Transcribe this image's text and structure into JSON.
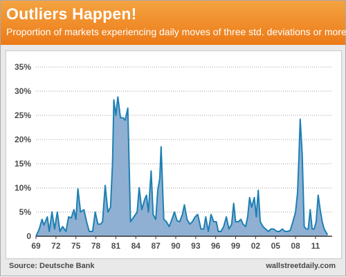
{
  "header": {
    "title": "Outliers Happen!",
    "subtitle": "Proportion of markets experiencing daily moves of three std. deviations or more"
  },
  "footer": {
    "source": "Source: Deutsche Bank",
    "site": "wallstreetdaily.com"
  },
  "colors": {
    "header_top": "#f4a341",
    "header_bottom": "#ec7a17",
    "area_fill": "#8fb0d2",
    "line": "#1d7fb3",
    "panel_background": "#e9e9e9"
  },
  "chart_data": {
    "type": "area",
    "title": "Outliers Happen!",
    "subtitle": "Proportion of markets experiencing daily moves of three std. deviations or more",
    "xlabel": "",
    "ylabel": "",
    "ylim": [
      0,
      35
    ],
    "xlim": [
      1969,
      2013.5
    ],
    "grid": "horizontal dotted",
    "legend": "none",
    "y_tick_labels": [
      "0",
      "5%",
      "10%",
      "15%",
      "20%",
      "25%",
      "30%",
      "35%"
    ],
    "x_tick_labels": [
      "69",
      "72",
      "75",
      "78",
      "81",
      "84",
      "87",
      "90",
      "93",
      "96",
      "99",
      "02",
      "05",
      "08",
      "11"
    ],
    "series": [
      {
        "values": [
          [
            1969.0,
            0.0
          ],
          [
            1969.5,
            1.5
          ],
          [
            1969.9,
            3.5
          ],
          [
            1970.2,
            2.3
          ],
          [
            1970.7,
            4.0
          ],
          [
            1971.0,
            1.0
          ],
          [
            1971.4,
            5.0
          ],
          [
            1971.8,
            1.5
          ],
          [
            1972.2,
            5.0
          ],
          [
            1972.6,
            1.0
          ],
          [
            1973.0,
            2.0
          ],
          [
            1973.5,
            1.0
          ],
          [
            1973.9,
            4.0
          ],
          [
            1974.3,
            3.8
          ],
          [
            1974.7,
            5.5
          ],
          [
            1975.0,
            3.5
          ],
          [
            1975.3,
            9.8
          ],
          [
            1975.7,
            5.0
          ],
          [
            1976.2,
            5.5
          ],
          [
            1976.6,
            3.0
          ],
          [
            1977.0,
            1.0
          ],
          [
            1977.5,
            1.0
          ],
          [
            1977.9,
            5.0
          ],
          [
            1978.3,
            2.5
          ],
          [
            1978.7,
            2.5
          ],
          [
            1979.0,
            3.0
          ],
          [
            1979.4,
            10.5
          ],
          [
            1979.8,
            5.0
          ],
          [
            1980.2,
            6.0
          ],
          [
            1980.5,
            15.0
          ],
          [
            1980.7,
            28.2
          ],
          [
            1981.0,
            25.0
          ],
          [
            1981.3,
            28.8
          ],
          [
            1981.7,
            24.5
          ],
          [
            1982.1,
            24.5
          ],
          [
            1982.4,
            24.0
          ],
          [
            1982.8,
            26.5
          ],
          [
            1983.2,
            3.0
          ],
          [
            1983.7,
            4.0
          ],
          [
            1984.2,
            5.0
          ],
          [
            1984.5,
            10.0
          ],
          [
            1984.9,
            5.5
          ],
          [
            1985.3,
            7.5
          ],
          [
            1985.6,
            8.5
          ],
          [
            1985.9,
            5.0
          ],
          [
            1986.3,
            13.5
          ],
          [
            1986.6,
            4.5
          ],
          [
            1987.0,
            3.5
          ],
          [
            1987.3,
            9.5
          ],
          [
            1987.6,
            12.0
          ],
          [
            1987.8,
            18.5
          ],
          [
            1988.2,
            3.5
          ],
          [
            1988.6,
            3.0
          ],
          [
            1989.0,
            2.0
          ],
          [
            1989.3,
            3.0
          ],
          [
            1989.8,
            5.0
          ],
          [
            1990.2,
            3.2
          ],
          [
            1990.6,
            3.0
          ],
          [
            1991.0,
            4.5
          ],
          [
            1991.3,
            6.5
          ],
          [
            1991.7,
            3.5
          ],
          [
            1992.1,
            2.5
          ],
          [
            1992.5,
            3.0
          ],
          [
            1992.9,
            4.0
          ],
          [
            1993.3,
            4.5
          ],
          [
            1993.8,
            1.5
          ],
          [
            1994.2,
            1.5
          ],
          [
            1994.5,
            4.0
          ],
          [
            1994.9,
            1.0
          ],
          [
            1995.3,
            4.5
          ],
          [
            1995.7,
            3.0
          ],
          [
            1996.1,
            3.0
          ],
          [
            1996.4,
            1.0
          ],
          [
            1996.8,
            1.0
          ],
          [
            1997.2,
            2.0
          ],
          [
            1997.6,
            4.0
          ],
          [
            1998.0,
            1.5
          ],
          [
            1998.4,
            2.5
          ],
          [
            1998.7,
            6.8
          ],
          [
            1999.0,
            3.0
          ],
          [
            1999.4,
            3.0
          ],
          [
            1999.8,
            3.5
          ],
          [
            2000.1,
            2.5
          ],
          [
            2000.5,
            2.0
          ],
          [
            2000.8,
            4.0
          ],
          [
            2001.1,
            8.0
          ],
          [
            2001.4,
            6.0
          ],
          [
            2001.8,
            8.0
          ],
          [
            2002.1,
            4.0
          ],
          [
            2002.4,
            9.5
          ],
          [
            2002.7,
            3.0
          ],
          [
            2003.1,
            2.0
          ],
          [
            2003.5,
            1.5
          ],
          [
            2003.9,
            1.0
          ],
          [
            2004.3,
            1.5
          ],
          [
            2004.7,
            1.5
          ],
          [
            2005.2,
            1.0
          ],
          [
            2005.6,
            1.0
          ],
          [
            2006.0,
            1.5
          ],
          [
            2006.4,
            1.0
          ],
          [
            2006.8,
            1.0
          ],
          [
            2007.2,
            1.2
          ],
          [
            2007.6,
            3.0
          ],
          [
            2008.0,
            5.0
          ],
          [
            2008.3,
            9.0
          ],
          [
            2008.5,
            16.0
          ],
          [
            2008.7,
            24.2
          ],
          [
            2009.0,
            17.0
          ],
          [
            2009.3,
            2.0
          ],
          [
            2009.6,
            1.5
          ],
          [
            2009.9,
            1.5
          ],
          [
            2010.2,
            5.5
          ],
          [
            2010.5,
            1.5
          ],
          [
            2010.8,
            1.5
          ],
          [
            2011.1,
            3.0
          ],
          [
            2011.4,
            8.5
          ],
          [
            2011.7,
            5.5
          ],
          [
            2012.0,
            3.0
          ],
          [
            2012.3,
            1.5
          ],
          [
            2012.8,
            0.3
          ]
        ]
      }
    ]
  }
}
